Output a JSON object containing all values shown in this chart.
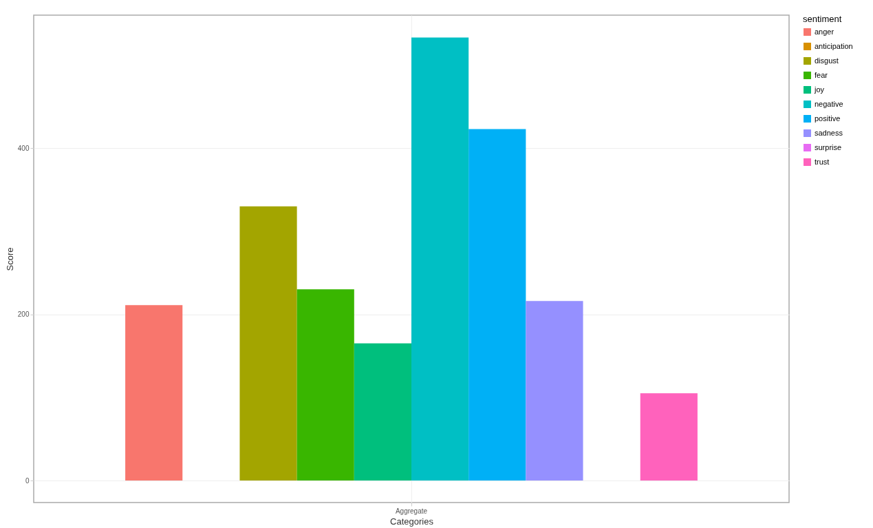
{
  "chart_data": {
    "type": "bar",
    "xlabel": "Categories",
    "ylabel": "Score",
    "legend_title": "sentiment",
    "categories": [
      "Aggregate"
    ],
    "series": [
      {
        "name": "anger",
        "color": "#f8766d",
        "values": [
          211
        ]
      },
      {
        "name": "anticipation",
        "color": "#d89000",
        "values": [
          null
        ]
      },
      {
        "name": "disgust",
        "color": "#a3a500",
        "values": [
          330
        ]
      },
      {
        "name": "fear",
        "color": "#39b600",
        "values": [
          230
        ]
      },
      {
        "name": "joy",
        "color": "#00bf7d",
        "values": [
          165
        ]
      },
      {
        "name": "negative",
        "color": "#00bfc4",
        "values": [
          533
        ]
      },
      {
        "name": "positive",
        "color": "#00b0f6",
        "values": [
          423
        ]
      },
      {
        "name": "sadness",
        "color": "#9590ff",
        "values": [
          216
        ]
      },
      {
        "name": "surprise",
        "color": "#e76bf3",
        "values": [
          null
        ]
      },
      {
        "name": "trust",
        "color": "#ff62bc",
        "values": [
          105
        ]
      }
    ],
    "ylim": [
      -26.5,
      560
    ],
    "yticks": [
      0,
      200,
      400
    ],
    "grid": true,
    "legend": "top right"
  }
}
